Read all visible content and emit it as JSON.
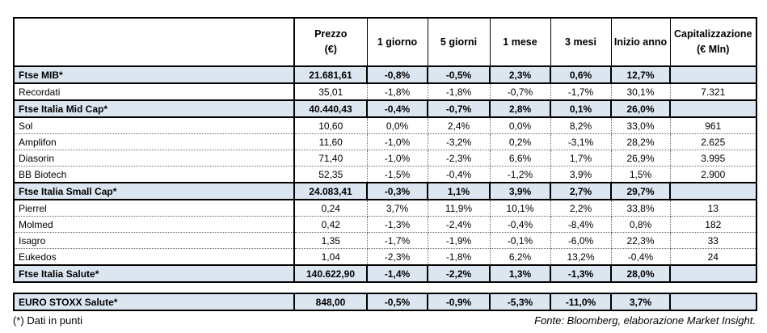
{
  "colors": {
    "index_row_bg": "#dce6f1",
    "border": "#000000",
    "dotted_border": "#666666",
    "text": "#000000",
    "background": "#ffffff"
  },
  "table": {
    "columns": [
      {
        "lines": [
          "Prezzo",
          "(€)"
        ]
      },
      {
        "lines": [
          "1 giorno"
        ]
      },
      {
        "lines": [
          "5 giorni"
        ]
      },
      {
        "lines": [
          "1 mese"
        ]
      },
      {
        "lines": [
          "3 mesi"
        ]
      },
      {
        "lines": [
          "Inizio anno"
        ]
      },
      {
        "lines": [
          "Capitalizzazione",
          "(€ Mln)"
        ]
      }
    ],
    "rows": [
      {
        "name": "Ftse MIB*",
        "kind": "index",
        "values": [
          "21.681,61",
          "-0,8%",
          "-0,5%",
          "2,3%",
          "0,6%",
          "12,7%",
          ""
        ]
      },
      {
        "name": "Recordati",
        "kind": "stock",
        "values": [
          "35,01",
          "-1,8%",
          "-1,8%",
          "-0,7%",
          "-1,7%",
          "30,1%",
          "7.321"
        ]
      },
      {
        "name": "Ftse Italia Mid Cap*",
        "kind": "index",
        "values": [
          "40.440,43",
          "-0,4%",
          "-0,7%",
          "2,8%",
          "0,1%",
          "26,0%",
          ""
        ]
      },
      {
        "name": "Sol",
        "kind": "stock",
        "values": [
          "10,60",
          "0,0%",
          "2,4%",
          "0,0%",
          "8,2%",
          "33,0%",
          "961"
        ]
      },
      {
        "name": "Amplifon",
        "kind": "stock",
        "values": [
          "11,60",
          "-1,0%",
          "-3,2%",
          "0,2%",
          "-3,1%",
          "28,2%",
          "2.625"
        ]
      },
      {
        "name": "Diasorin",
        "kind": "stock",
        "values": [
          "71,40",
          "-1,0%",
          "-2,3%",
          "6,6%",
          "1,7%",
          "26,9%",
          "3.995"
        ]
      },
      {
        "name": "BB Biotech",
        "kind": "stock",
        "values": [
          "52,35",
          "-1,5%",
          "-0,4%",
          "-1,2%",
          "3,9%",
          "1,5%",
          "2.900"
        ]
      },
      {
        "name": "Ftse Italia Small Cap*",
        "kind": "index",
        "values": [
          "24.083,41",
          "-0,3%",
          "1,1%",
          "3,9%",
          "2,7%",
          "29,7%",
          ""
        ]
      },
      {
        "name": "Pierrel",
        "kind": "stock",
        "values": [
          "0,24",
          "3,7%",
          "11,9%",
          "10,1%",
          "2,2%",
          "33,8%",
          "13"
        ]
      },
      {
        "name": "Molmed",
        "kind": "stock",
        "values": [
          "0,42",
          "-1,3%",
          "-2,4%",
          "-0,4%",
          "-8,4%",
          "0,8%",
          "182"
        ]
      },
      {
        "name": "Isagro",
        "kind": "stock",
        "values": [
          "1,35",
          "-1,7%",
          "-1,9%",
          "-0,1%",
          "-6,0%",
          "22,3%",
          "33"
        ]
      },
      {
        "name": "Eukedos",
        "kind": "stock",
        "values": [
          "1,04",
          "-2,3%",
          "-1,8%",
          "6,2%",
          "13,2%",
          "-0,4%",
          "24"
        ]
      },
      {
        "name": "Ftse Italia Salute*",
        "kind": "index",
        "values": [
          "140.622,90",
          "-1,4%",
          "-2,2%",
          "1,3%",
          "-1,3%",
          "28,0%",
          ""
        ]
      }
    ]
  },
  "euro_table": {
    "row": {
      "name": "EURO STOXX Salute*",
      "kind": "index",
      "values": [
        "848,00",
        "-0,5%",
        "-0,9%",
        "-5,3%",
        "-11,0%",
        "3,7%",
        ""
      ]
    }
  },
  "footer": {
    "note": "(*) Dati in punti",
    "source": "Fonte: Bloomberg, elaborazione Market Insight."
  }
}
